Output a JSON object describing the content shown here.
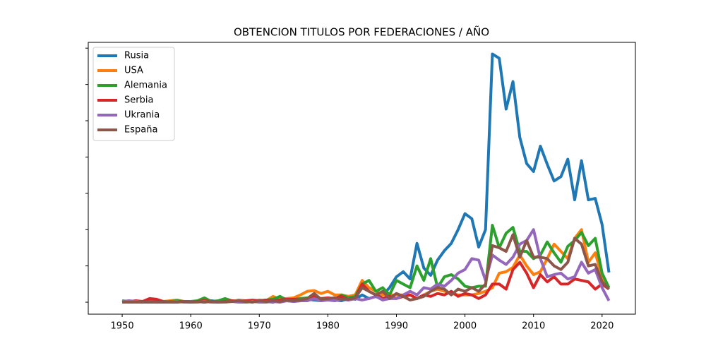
{
  "chart_data": {
    "type": "line",
    "title": "OBTENCION TITULOS POR FEDERACIONES / AÑO",
    "x": [
      1950,
      1951,
      1952,
      1953,
      1954,
      1955,
      1956,
      1957,
      1958,
      1959,
      1960,
      1961,
      1962,
      1963,
      1964,
      1965,
      1966,
      1967,
      1968,
      1969,
      1970,
      1971,
      1972,
      1973,
      1974,
      1975,
      1976,
      1977,
      1978,
      1979,
      1980,
      1981,
      1982,
      1983,
      1984,
      1985,
      1986,
      1987,
      1988,
      1989,
      1990,
      1991,
      1992,
      1993,
      1994,
      1995,
      1996,
      1997,
      1998,
      1999,
      2000,
      2001,
      2002,
      2003,
      2004,
      2005,
      2006,
      2007,
      2008,
      2009,
      2010,
      2011,
      2012,
      2013,
      2014,
      2015,
      2016,
      2017,
      2018,
      2019,
      2020,
      2021
    ],
    "xlim": [
      1945.05,
      2024.86
    ],
    "xticks": [
      1950,
      1960,
      1970,
      1980,
      1990,
      2000,
      2010,
      2020
    ],
    "ylim": [
      -16.5,
      358
    ],
    "yticks": [
      0,
      50,
      100,
      150,
      200,
      250,
      300,
      350
    ],
    "legend": "upper left",
    "series": [
      {
        "name": "Rusia",
        "color": "#1f77b4",
        "values": [
          0,
          1,
          1,
          0,
          1,
          0,
          0,
          1,
          0,
          1,
          0,
          1,
          0,
          2,
          1,
          0,
          1,
          2,
          0,
          1,
          2,
          1,
          0,
          3,
          2,
          1,
          2,
          4,
          3,
          2,
          4,
          3,
          2,
          5,
          4,
          10,
          5,
          8,
          10,
          20,
          35,
          42,
          32,
          81,
          47,
          37,
          58,
          71,
          81,
          100,
          122,
          115,
          76,
          100,
          342,
          336,
          266,
          304,
          227,
          191,
          180,
          215,
          190,
          167,
          173,
          197,
          141,
          195,
          141,
          143,
          107,
          41
        ]
      },
      {
        "name": "USA",
        "color": "#ff7f0e",
        "values": [
          0,
          0,
          1,
          0,
          1,
          2,
          1,
          2,
          3,
          1,
          0,
          1,
          2,
          0,
          1,
          2,
          1,
          3,
          2,
          1,
          3,
          2,
          8,
          4,
          5,
          6,
          10,
          15,
          16,
          12,
          15,
          10,
          10,
          8,
          10,
          30,
          20,
          15,
          10,
          10,
          10,
          10,
          10,
          5,
          10,
          15,
          18,
          15,
          12,
          10,
          10,
          10,
          12,
          15,
          20,
          40,
          42,
          48,
          65,
          50,
          38,
          42,
          60,
          80,
          70,
          60,
          88,
          100,
          55,
          68,
          35,
          20
        ]
      },
      {
        "name": "Alemania",
        "color": "#2ca02c",
        "values": [
          2,
          1,
          1,
          0,
          2,
          1,
          0,
          1,
          2,
          1,
          1,
          2,
          6,
          1,
          2,
          5,
          2,
          1,
          2,
          3,
          2,
          3,
          4,
          8,
          3,
          4,
          5,
          6,
          4,
          3,
          5,
          4,
          10,
          6,
          8,
          25,
          30,
          15,
          20,
          10,
          30,
          25,
          20,
          50,
          30,
          60,
          20,
          35,
          38,
          32,
          22,
          20,
          22,
          22,
          106,
          75,
          95,
          103,
          70,
          70,
          60,
          65,
          83,
          68,
          55,
          77,
          85,
          96,
          78,
          88,
          40,
          20
        ]
      },
      {
        "name": "Serbia",
        "color": "#d62728",
        "values": [
          0,
          1,
          2,
          1,
          5,
          4,
          1,
          0,
          1,
          1,
          0,
          1,
          2,
          1,
          0,
          1,
          2,
          1,
          2,
          2,
          2,
          3,
          2,
          3,
          4,
          4,
          3,
          2,
          8,
          5,
          6,
          5,
          8,
          3,
          5,
          25,
          15,
          10,
          5,
          8,
          5,
          8,
          10,
          5,
          10,
          8,
          12,
          10,
          15,
          8,
          12,
          10,
          5,
          10,
          25,
          25,
          18,
          45,
          55,
          40,
          20,
          38,
          28,
          35,
          25,
          25,
          32,
          30,
          28,
          18,
          25,
          18
        ]
      },
      {
        "name": "Ukrania",
        "color": "#9467bd",
        "values": [
          1,
          2,
          1,
          0,
          0,
          0,
          0,
          0,
          1,
          0,
          0,
          0,
          1,
          0,
          0,
          0,
          1,
          0,
          0,
          1,
          0,
          0,
          1,
          0,
          2,
          1,
          2,
          2,
          5,
          2,
          3,
          2,
          4,
          3,
          5,
          3,
          5,
          8,
          3,
          5,
          5,
          10,
          15,
          10,
          20,
          18,
          25,
          22,
          30,
          40,
          45,
          60,
          58,
          30,
          65,
          58,
          52,
          62,
          80,
          85,
          100,
          60,
          35,
          38,
          40,
          32,
          35,
          55,
          40,
          45,
          20,
          2
        ]
      },
      {
        "name": "España",
        "color": "#8c564b",
        "values": [
          0,
          0,
          0,
          0,
          0,
          0,
          0,
          0,
          0,
          1,
          0,
          1,
          0,
          1,
          0,
          1,
          1,
          2,
          1,
          0,
          2,
          1,
          2,
          1,
          3,
          2,
          3,
          5,
          12,
          4,
          5,
          6,
          4,
          4,
          6,
          20,
          15,
          10,
          15,
          5,
          12,
          8,
          3,
          5,
          8,
          15,
          20,
          18,
          10,
          18,
          15,
          20,
          15,
          25,
          78,
          75,
          70,
          93,
          62,
          85,
          62,
          62,
          60,
          50,
          45,
          55,
          88,
          80,
          50,
          52,
          28,
          18
        ]
      }
    ]
  }
}
